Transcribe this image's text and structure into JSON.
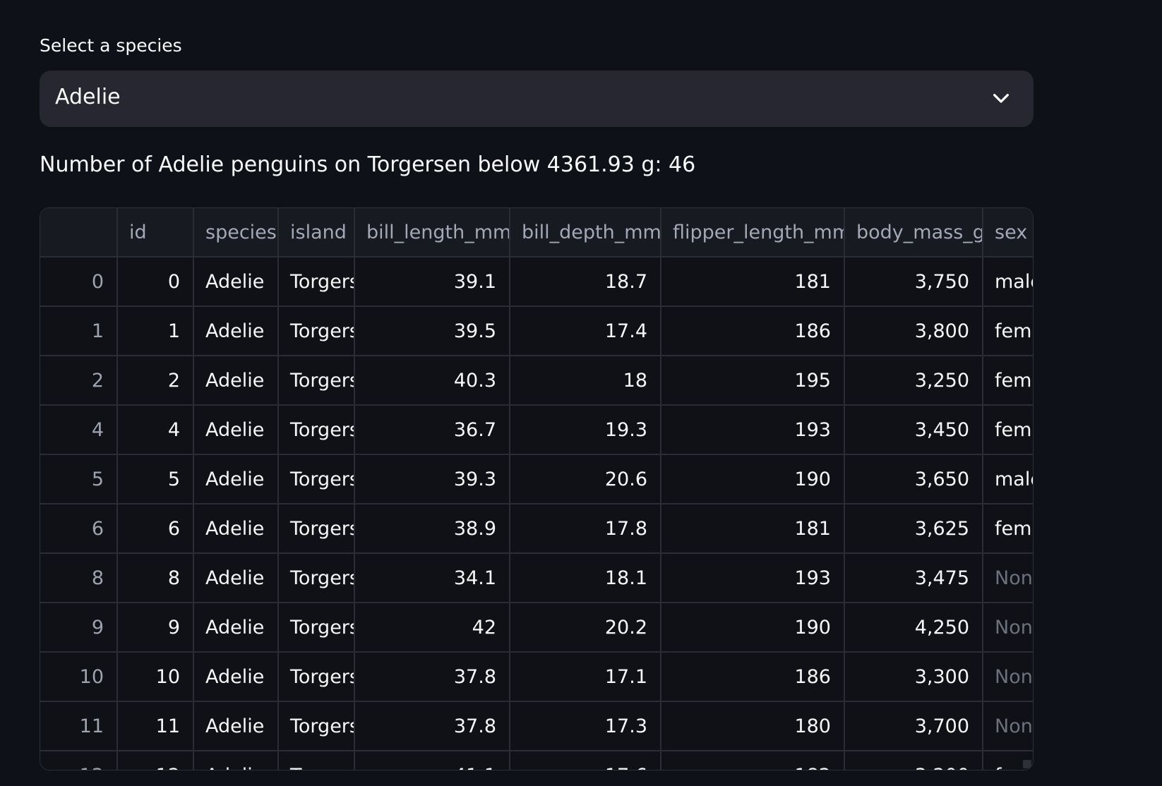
{
  "select": {
    "label": "Select a species",
    "value": "Adelie"
  },
  "summary": "Number of Adelie penguins on Torgersen below 4361.93 g: 46",
  "table": {
    "columns": [
      "",
      "id",
      "species",
      "island",
      "bill_length_mm",
      "bill_depth_mm",
      "flipper_length_mm",
      "body_mass_g",
      "sex"
    ],
    "rows": [
      {
        "index": "0",
        "id": "0",
        "species": "Adelie",
        "island": "Torgersen",
        "bill_length_mm": "39.1",
        "bill_depth_mm": "18.7",
        "flipper_length_mm": "181",
        "body_mass_g": "3,750",
        "sex": "male"
      },
      {
        "index": "1",
        "id": "1",
        "species": "Adelie",
        "island": "Torgersen",
        "bill_length_mm": "39.5",
        "bill_depth_mm": "17.4",
        "flipper_length_mm": "186",
        "body_mass_g": "3,800",
        "sex": "female"
      },
      {
        "index": "2",
        "id": "2",
        "species": "Adelie",
        "island": "Torgersen",
        "bill_length_mm": "40.3",
        "bill_depth_mm": "18",
        "flipper_length_mm": "195",
        "body_mass_g": "3,250",
        "sex": "female"
      },
      {
        "index": "4",
        "id": "4",
        "species": "Adelie",
        "island": "Torgersen",
        "bill_length_mm": "36.7",
        "bill_depth_mm": "19.3",
        "flipper_length_mm": "193",
        "body_mass_g": "3,450",
        "sex": "female"
      },
      {
        "index": "5",
        "id": "5",
        "species": "Adelie",
        "island": "Torgersen",
        "bill_length_mm": "39.3",
        "bill_depth_mm": "20.6",
        "flipper_length_mm": "190",
        "body_mass_g": "3,650",
        "sex": "male"
      },
      {
        "index": "6",
        "id": "6",
        "species": "Adelie",
        "island": "Torgersen",
        "bill_length_mm": "38.9",
        "bill_depth_mm": "17.8",
        "flipper_length_mm": "181",
        "body_mass_g": "3,625",
        "sex": "female"
      },
      {
        "index": "8",
        "id": "8",
        "species": "Adelie",
        "island": "Torgersen",
        "bill_length_mm": "34.1",
        "bill_depth_mm": "18.1",
        "flipper_length_mm": "193",
        "body_mass_g": "3,475",
        "sex": "None"
      },
      {
        "index": "9",
        "id": "9",
        "species": "Adelie",
        "island": "Torgersen",
        "bill_length_mm": "42",
        "bill_depth_mm": "20.2",
        "flipper_length_mm": "190",
        "body_mass_g": "4,250",
        "sex": "None"
      },
      {
        "index": "10",
        "id": "10",
        "species": "Adelie",
        "island": "Torgersen",
        "bill_length_mm": "37.8",
        "bill_depth_mm": "17.1",
        "flipper_length_mm": "186",
        "body_mass_g": "3,300",
        "sex": "None"
      },
      {
        "index": "11",
        "id": "11",
        "species": "Adelie",
        "island": "Torgersen",
        "bill_length_mm": "37.8",
        "bill_depth_mm": "17.3",
        "flipper_length_mm": "180",
        "body_mass_g": "3,700",
        "sex": "None"
      },
      {
        "index": "12",
        "id": "12",
        "species": "Adelie",
        "island": "Torgersen",
        "bill_length_mm": "41.1",
        "bill_depth_mm": "17.6",
        "flipper_length_mm": "182",
        "body_mass_g": "3,200",
        "sex": "female"
      }
    ]
  }
}
